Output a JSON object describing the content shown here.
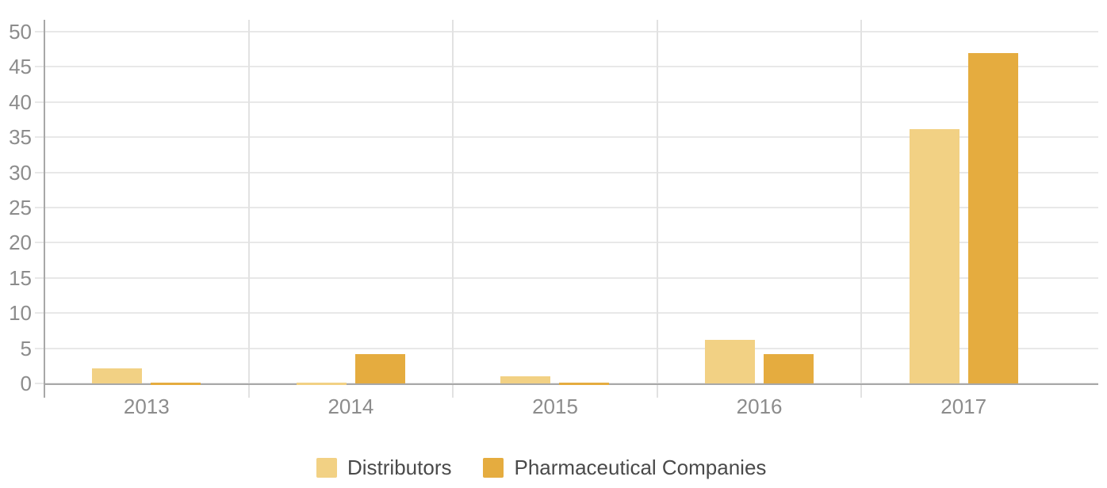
{
  "chart_data": {
    "type": "bar",
    "title": "",
    "categories": [
      "2013",
      "2014",
      "2015",
      "2016",
      "2017"
    ],
    "series": [
      {
        "name": "Distributors",
        "color": "#F2D184",
        "values": [
          2.1,
          0.1,
          1,
          6.2,
          36.2
        ]
      },
      {
        "name": "Pharmaceutical Companies",
        "color": "#E5AC3F",
        "values": [
          0.1,
          4.2,
          0.1,
          4.2,
          47
        ]
      }
    ],
    "xlabel": "",
    "ylabel": "",
    "ylim": [
      0,
      50
    ],
    "yticks": [
      0,
      5,
      10,
      15,
      20,
      25,
      30,
      35,
      40,
      45,
      50
    ],
    "grid": true,
    "legend_position": "bottom"
  },
  "colors": {
    "background": "#FFFFFF",
    "axis_line": "#A8A8A8",
    "gridline": "#E8E8E8",
    "group_separator": "#E2E2E2",
    "tick_label": "#8C8C8C",
    "legend_text": "#4A4A4A"
  }
}
